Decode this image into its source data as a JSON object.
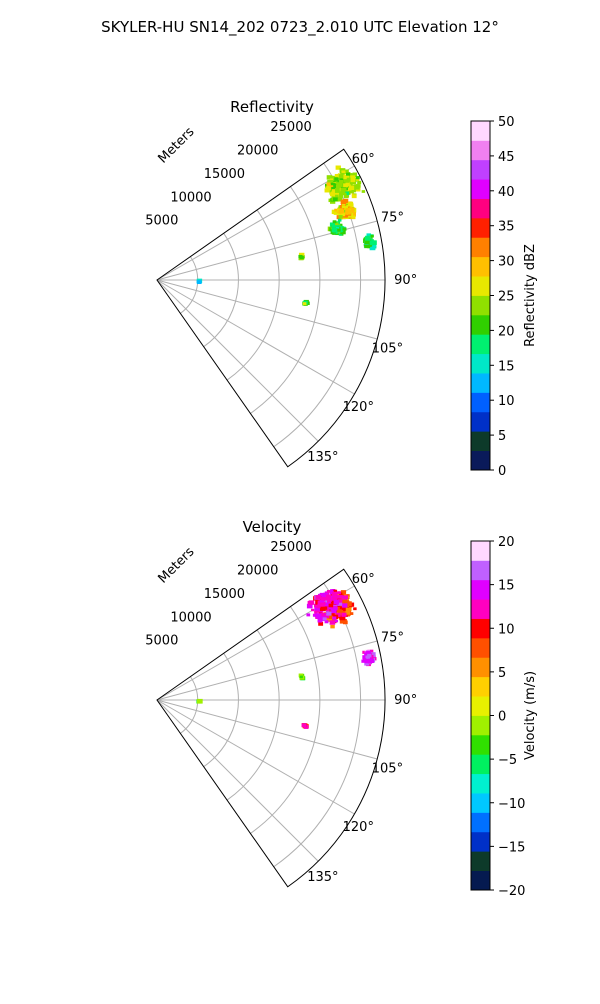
{
  "figure": {
    "suptitle": "SKYLER-HU  SN14_202  0723_2.010 UTC Elevation 12°"
  },
  "chart_data": [
    {
      "type": "polar-sector",
      "title": "Reflectivity",
      "range_label": "Meters",
      "theta_range_deg": [
        55,
        145
      ],
      "r_max": 28000,
      "r_ticks": [
        5000,
        10000,
        15000,
        20000,
        25000
      ],
      "r_tick_labels": [
        "5000",
        "10000",
        "15000",
        "20000",
        "25000"
      ],
      "theta_ticks": [
        60,
        75,
        90,
        105,
        120,
        135
      ],
      "theta_tick_labels": [
        "60°",
        "75°",
        "90°",
        "105°",
        "120°",
        "135°"
      ],
      "grid": true,
      "colorbar": {
        "label": "Reflectivity dBZ",
        "min": 0,
        "max": 50,
        "ticks": [
          0,
          5,
          10,
          15,
          20,
          25,
          30,
          35,
          40,
          45,
          50
        ],
        "tick_labels": [
          "0",
          "5",
          "10",
          "15",
          "20",
          "25",
          "30",
          "35",
          "40",
          "45",
          "50"
        ],
        "colormap": [
          "#0a1a5a",
          "#0d3a2a",
          "#0030c8",
          "#0060ff",
          "#00b8ff",
          "#00e8c8",
          "#00f070",
          "#30d000",
          "#90e000",
          "#e8e800",
          "#ffc000",
          "#ff8000",
          "#ff2000",
          "#ff0080",
          "#e000ff",
          "#c040ff",
          "#f080f0",
          "#ffd8ff"
        ]
      },
      "echoes": [
        {
          "r": 25500,
          "theta": 63,
          "value": 24,
          "spread_r": 2600,
          "spread_t": 5,
          "n": 260
        },
        {
          "r": 24500,
          "theta": 70,
          "value": 28,
          "spread_r": 1600,
          "spread_t": 3,
          "n": 120
        },
        {
          "r": 23000,
          "theta": 74,
          "value": 20,
          "spread_r": 1200,
          "spread_t": 3,
          "n": 70
        },
        {
          "r": 26500,
          "theta": 80,
          "value": 19,
          "spread_r": 800,
          "spread_t": 2.5,
          "n": 40
        },
        {
          "r": 18000,
          "theta": 81,
          "value": 22,
          "spread_r": 300,
          "spread_t": 1.2,
          "n": 8
        },
        {
          "r": 5200,
          "theta": 93,
          "value": 13,
          "spread_r": 150,
          "spread_t": 1.5,
          "n": 6
        },
        {
          "r": 18500,
          "theta": 99,
          "value": 21,
          "spread_r": 400,
          "spread_t": 1.2,
          "n": 8
        }
      ]
    },
    {
      "type": "polar-sector",
      "title": "Velocity",
      "range_label": "Meters",
      "theta_range_deg": [
        55,
        145
      ],
      "r_max": 28000,
      "r_ticks": [
        5000,
        10000,
        15000,
        20000,
        25000
      ],
      "r_tick_labels": [
        "5000",
        "10000",
        "15000",
        "20000",
        "25000"
      ],
      "theta_ticks": [
        60,
        75,
        90,
        105,
        120,
        135
      ],
      "theta_tick_labels": [
        "60°",
        "75°",
        "90°",
        "105°",
        "120°",
        "135°"
      ],
      "grid": true,
      "colorbar": {
        "label": "Velocity (m/s)",
        "min": -20,
        "max": 20,
        "ticks": [
          -20,
          -15,
          -10,
          -5,
          0,
          5,
          10,
          15,
          20
        ],
        "tick_labels": [
          "−20",
          "−15",
          "−10",
          "−5",
          "0",
          "5",
          "10",
          "15",
          "20"
        ],
        "colormap": [
          "#051a50",
          "#0d3a2a",
          "#0030c8",
          "#0070ff",
          "#00c8ff",
          "#00f0d0",
          "#00f060",
          "#30e000",
          "#a0f000",
          "#e8f000",
          "#ffd000",
          "#ff9000",
          "#ff5000",
          "#ff0000",
          "#ff00c0",
          "#e000ff",
          "#c060ff",
          "#ffd8ff"
        ]
      },
      "echoes": [
        {
          "r": 25000,
          "theta": 63,
          "value": 8,
          "spread_r": 2400,
          "spread_t": 5,
          "n": 250
        },
        {
          "r": 24000,
          "theta": 61,
          "value": 13,
          "spread_r": 3000,
          "spread_t": 6,
          "n": 160
        },
        {
          "r": 26500,
          "theta": 79,
          "value": 14,
          "spread_r": 1000,
          "spread_t": 3,
          "n": 60
        },
        {
          "r": 18000,
          "theta": 81,
          "value": -3,
          "spread_r": 300,
          "spread_t": 1.2,
          "n": 8
        },
        {
          "r": 5200,
          "theta": 93,
          "value": -3,
          "spread_r": 150,
          "spread_t": 1.5,
          "n": 6
        },
        {
          "r": 18500,
          "theta": 100,
          "value": 10,
          "spread_r": 400,
          "spread_t": 1.2,
          "n": 8
        }
      ]
    }
  ]
}
